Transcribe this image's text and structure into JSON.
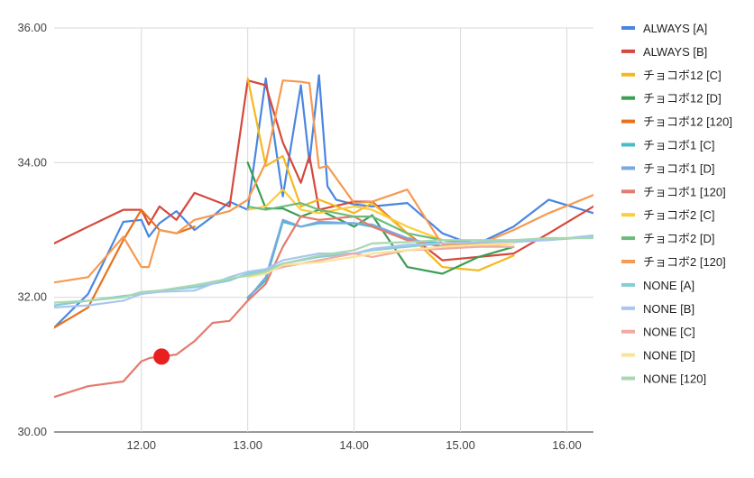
{
  "chart_data": {
    "type": "line",
    "title": "",
    "xlabel": "",
    "ylabel": "",
    "xlim": [
      11.18,
      16.25
    ],
    "ylim": [
      30.0,
      36.0
    ],
    "x_ticks": [
      12.0,
      13.0,
      14.0,
      15.0,
      16.0
    ],
    "x_tick_labels": [
      "12.00",
      "13.00",
      "14.00",
      "15.00",
      "16.00"
    ],
    "y_ticks": [
      30.0,
      32.0,
      34.0,
      36.0
    ],
    "y_tick_labels": [
      "30.00",
      "32.00",
      "34.00",
      "36.00"
    ],
    "grid": true,
    "legend_position": "right",
    "marker_point": {
      "x": 12.19,
      "y": 31.12,
      "color": "#e8201f"
    },
    "series": [
      {
        "name": "ALWAYS [A]",
        "color": "#4a86e0",
        "points": [
          [
            11.18,
            31.55
          ],
          [
            11.5,
            32.05
          ],
          [
            11.83,
            33.12
          ],
          [
            12.0,
            33.15
          ],
          [
            12.07,
            32.9
          ],
          [
            12.17,
            33.1
          ],
          [
            12.33,
            33.28
          ],
          [
            12.5,
            33.0
          ],
          [
            12.67,
            33.2
          ],
          [
            12.83,
            33.42
          ],
          [
            13.0,
            33.3
          ],
          [
            13.17,
            35.25
          ],
          [
            13.33,
            33.5
          ],
          [
            13.5,
            35.15
          ],
          [
            13.58,
            34.0
          ],
          [
            13.67,
            35.3
          ],
          [
            13.75,
            33.65
          ],
          [
            13.83,
            33.45
          ],
          [
            14.0,
            33.38
          ],
          [
            14.17,
            33.35
          ],
          [
            14.5,
            33.4
          ],
          [
            14.83,
            32.95
          ],
          [
            15.0,
            32.85
          ],
          [
            15.17,
            32.8
          ],
          [
            15.5,
            33.05
          ],
          [
            15.83,
            33.45
          ],
          [
            16.25,
            33.25
          ]
        ]
      },
      {
        "name": "ALWAYS [B]",
        "color": "#d5483c",
        "points": [
          [
            11.18,
            32.8
          ],
          [
            11.5,
            33.05
          ],
          [
            11.83,
            33.3
          ],
          [
            12.0,
            33.3
          ],
          [
            12.07,
            33.08
          ],
          [
            12.17,
            33.35
          ],
          [
            12.33,
            33.15
          ],
          [
            12.5,
            33.55
          ],
          [
            12.83,
            33.35
          ],
          [
            13.0,
            35.22
          ],
          [
            13.17,
            35.15
          ],
          [
            13.33,
            34.3
          ],
          [
            13.5,
            33.7
          ],
          [
            13.58,
            34.1
          ],
          [
            13.67,
            33.3
          ],
          [
            14.0,
            33.42
          ],
          [
            14.17,
            33.42
          ],
          [
            14.5,
            32.95
          ],
          [
            14.83,
            32.55
          ],
          [
            15.17,
            32.6
          ],
          [
            15.5,
            32.65
          ],
          [
            15.83,
            32.95
          ],
          [
            16.25,
            33.35
          ]
        ]
      },
      {
        "name": "チョコボ12 [C]",
        "color": "#f5b81e",
        "points": [
          [
            13.0,
            35.25
          ],
          [
            13.17,
            33.95
          ],
          [
            13.33,
            34.1
          ],
          [
            13.5,
            33.35
          ],
          [
            13.67,
            33.45
          ],
          [
            14.0,
            33.25
          ],
          [
            14.17,
            33.4
          ],
          [
            14.5,
            32.95
          ],
          [
            14.83,
            32.45
          ],
          [
            15.17,
            32.4
          ],
          [
            15.5,
            32.62
          ]
        ]
      },
      {
        "name": "チョコボ12 [D]",
        "color": "#3b9e55",
        "points": [
          [
            13.0,
            34.0
          ],
          [
            13.17,
            33.32
          ],
          [
            13.33,
            33.32
          ],
          [
            13.5,
            33.2
          ],
          [
            13.67,
            33.3
          ],
          [
            14.0,
            33.05
          ],
          [
            14.17,
            33.22
          ],
          [
            14.5,
            32.45
          ],
          [
            14.83,
            32.35
          ],
          [
            15.17,
            32.6
          ],
          [
            15.5,
            32.75
          ]
        ]
      },
      {
        "name": "チョコボ12 [120]",
        "color": "#e8721c",
        "points": [
          [
            11.18,
            31.55
          ],
          [
            11.5,
            31.85
          ],
          [
            11.83,
            32.85
          ],
          [
            12.0,
            33.3
          ],
          [
            12.17,
            33.0
          ],
          [
            12.33,
            32.95
          ],
          [
            12.5,
            33.05
          ]
        ]
      },
      {
        "name": "チョコボ1 [C]",
        "color": "#46bcc6",
        "points": [
          [
            13.0,
            32.0
          ],
          [
            13.17,
            32.25
          ],
          [
            13.33,
            33.12
          ],
          [
            13.5,
            33.05
          ],
          [
            13.67,
            33.1
          ],
          [
            14.0,
            33.1
          ],
          [
            14.17,
            33.05
          ],
          [
            14.5,
            32.85
          ],
          [
            14.83,
            32.8
          ],
          [
            15.17,
            32.78
          ],
          [
            15.5,
            32.8
          ]
        ]
      },
      {
        "name": "チョコボ1 [D]",
        "color": "#7aa8e0",
        "points": [
          [
            13.0,
            31.98
          ],
          [
            13.17,
            32.3
          ],
          [
            13.33,
            33.15
          ],
          [
            13.5,
            33.05
          ],
          [
            13.67,
            33.12
          ],
          [
            14.0,
            33.1
          ],
          [
            14.17,
            33.08
          ],
          [
            14.5,
            32.88
          ],
          [
            14.83,
            32.75
          ],
          [
            15.17,
            32.78
          ],
          [
            15.5,
            32.8
          ]
        ]
      },
      {
        "name": "チョコボ1 [120]",
        "color": "#e57a6e",
        "points": [
          [
            11.18,
            30.52
          ],
          [
            11.5,
            30.68
          ],
          [
            11.83,
            30.75
          ],
          [
            12.0,
            31.05
          ],
          [
            12.08,
            31.1
          ],
          [
            12.19,
            31.12
          ],
          [
            12.33,
            31.15
          ],
          [
            12.5,
            31.35
          ],
          [
            12.67,
            31.62
          ],
          [
            12.83,
            31.65
          ],
          [
            13.0,
            31.95
          ],
          [
            13.17,
            32.2
          ],
          [
            13.33,
            32.75
          ],
          [
            13.5,
            33.2
          ],
          [
            13.67,
            33.15
          ],
          [
            14.0,
            33.2
          ],
          [
            14.17,
            33.05
          ],
          [
            14.5,
            32.85
          ],
          [
            14.83,
            32.75
          ],
          [
            15.17,
            32.78
          ],
          [
            15.5,
            32.8
          ]
        ]
      },
      {
        "name": "チョコボ2 [C]",
        "color": "#fbcd3c",
        "points": [
          [
            13.0,
            33.3
          ],
          [
            13.17,
            33.35
          ],
          [
            13.33,
            33.6
          ],
          [
            13.5,
            33.3
          ],
          [
            13.67,
            33.25
          ],
          [
            14.0,
            33.35
          ],
          [
            14.17,
            33.3
          ],
          [
            14.5,
            33.05
          ],
          [
            14.83,
            32.85
          ],
          [
            15.17,
            32.75
          ],
          [
            15.5,
            32.8
          ]
        ]
      },
      {
        "name": "チョコボ2 [D]",
        "color": "#6cbb7c",
        "points": [
          [
            13.0,
            33.35
          ],
          [
            13.17,
            33.3
          ],
          [
            13.33,
            33.35
          ],
          [
            13.5,
            33.4
          ],
          [
            13.67,
            33.3
          ],
          [
            14.0,
            33.2
          ],
          [
            14.17,
            33.2
          ],
          [
            14.5,
            32.95
          ],
          [
            14.83,
            32.85
          ],
          [
            15.17,
            32.8
          ],
          [
            15.5,
            32.82
          ]
        ]
      },
      {
        "name": "チョコボ2 [120]",
        "color": "#f59a50",
        "points": [
          [
            11.18,
            32.22
          ],
          [
            11.5,
            32.3
          ],
          [
            11.83,
            32.9
          ],
          [
            12.0,
            32.45
          ],
          [
            12.07,
            32.45
          ],
          [
            12.17,
            33.0
          ],
          [
            12.33,
            32.95
          ],
          [
            12.5,
            33.15
          ],
          [
            12.83,
            33.28
          ],
          [
            13.0,
            33.45
          ],
          [
            13.17,
            34.0
          ],
          [
            13.33,
            35.22
          ],
          [
            13.5,
            35.2
          ],
          [
            13.58,
            35.18
          ],
          [
            13.67,
            33.92
          ],
          [
            13.75,
            33.95
          ],
          [
            14.0,
            33.4
          ],
          [
            14.17,
            33.42
          ],
          [
            14.5,
            33.6
          ],
          [
            14.83,
            32.78
          ],
          [
            15.17,
            32.78
          ],
          [
            15.5,
            33.0
          ],
          [
            15.83,
            33.25
          ],
          [
            16.25,
            33.52
          ]
        ]
      },
      {
        "name": "NONE [A]",
        "color": "#86cdd4",
        "points": [
          [
            11.18,
            31.88
          ],
          [
            11.5,
            31.95
          ],
          [
            11.83,
            32.02
          ],
          [
            12.0,
            32.05
          ],
          [
            12.17,
            32.1
          ],
          [
            12.5,
            32.15
          ],
          [
            12.83,
            32.25
          ],
          [
            13.0,
            32.35
          ],
          [
            13.17,
            32.4
          ],
          [
            13.33,
            32.5
          ],
          [
            13.67,
            32.6
          ],
          [
            14.0,
            32.65
          ],
          [
            14.17,
            32.7
          ],
          [
            14.5,
            32.75
          ],
          [
            14.83,
            32.8
          ],
          [
            15.17,
            32.82
          ],
          [
            15.5,
            32.85
          ],
          [
            15.83,
            32.85
          ],
          [
            16.25,
            32.9
          ]
        ]
      },
      {
        "name": "NONE [B]",
        "color": "#a9c6ee",
        "points": [
          [
            11.18,
            31.85
          ],
          [
            11.5,
            31.88
          ],
          [
            11.83,
            31.95
          ],
          [
            12.0,
            32.05
          ],
          [
            12.17,
            32.08
          ],
          [
            12.5,
            32.1
          ],
          [
            12.83,
            32.3
          ],
          [
            13.0,
            32.38
          ],
          [
            13.17,
            32.42
          ],
          [
            13.33,
            32.55
          ],
          [
            13.67,
            32.65
          ],
          [
            14.0,
            32.65
          ],
          [
            14.17,
            32.72
          ],
          [
            14.5,
            32.78
          ],
          [
            14.83,
            32.8
          ],
          [
            15.17,
            32.82
          ],
          [
            15.5,
            32.82
          ],
          [
            15.83,
            32.85
          ],
          [
            16.25,
            32.92
          ]
        ]
      },
      {
        "name": "NONE [C]",
        "color": "#f2aaa2",
        "points": [
          [
            13.0,
            32.3
          ],
          [
            13.17,
            32.38
          ],
          [
            13.33,
            32.45
          ],
          [
            13.5,
            32.5
          ],
          [
            13.67,
            32.55
          ],
          [
            14.0,
            32.65
          ],
          [
            14.17,
            32.6
          ],
          [
            14.5,
            32.7
          ],
          [
            14.83,
            32.72
          ],
          [
            15.17,
            32.75
          ],
          [
            15.5,
            32.75
          ]
        ]
      },
      {
        "name": "NONE [D]",
        "color": "#fbe39a",
        "points": [
          [
            13.0,
            32.3
          ],
          [
            13.17,
            32.35
          ],
          [
            13.33,
            32.48
          ],
          [
            13.5,
            32.5
          ],
          [
            13.67,
            32.52
          ],
          [
            14.0,
            32.6
          ],
          [
            14.17,
            32.65
          ],
          [
            14.5,
            32.7
          ],
          [
            14.83,
            32.75
          ],
          [
            15.17,
            32.78
          ],
          [
            15.5,
            32.8
          ]
        ]
      },
      {
        "name": "NONE [120]",
        "color": "#a8d8b0",
        "points": [
          [
            11.18,
            31.92
          ],
          [
            11.5,
            31.95
          ],
          [
            11.83,
            32.0
          ],
          [
            12.0,
            32.08
          ],
          [
            12.17,
            32.1
          ],
          [
            12.5,
            32.18
          ],
          [
            12.83,
            32.28
          ],
          [
            13.0,
            32.32
          ],
          [
            13.17,
            32.38
          ],
          [
            13.33,
            32.5
          ],
          [
            13.67,
            32.62
          ],
          [
            14.0,
            32.7
          ],
          [
            14.17,
            32.8
          ],
          [
            14.5,
            32.82
          ],
          [
            14.83,
            32.85
          ],
          [
            15.17,
            32.85
          ],
          [
            15.5,
            32.85
          ],
          [
            15.83,
            32.88
          ],
          [
            16.25,
            32.88
          ]
        ]
      }
    ]
  }
}
